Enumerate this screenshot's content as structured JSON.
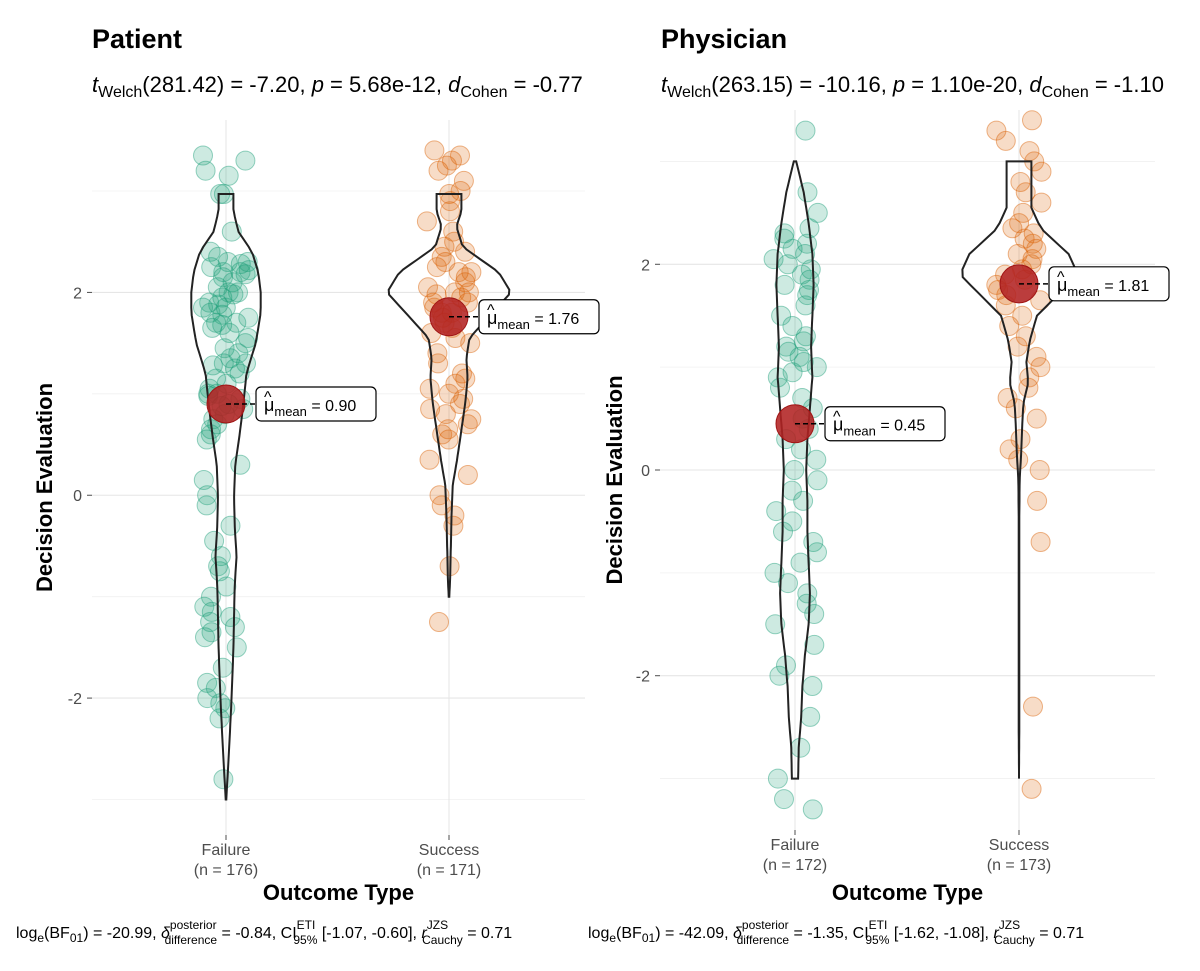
{
  "chart_data": [
    {
      "type": "violin",
      "title": "Patient",
      "subtitle": {
        "t_sub": "Welch",
        "df": "(281.42) = -7.20, ",
        "p_label": "p",
        "p_value": " = 5.68e-12, ",
        "d_label": "d",
        "d_sub": "Cohen",
        "d_value": " = -0.77"
      },
      "xlabel": "Outcome Type",
      "ylabel": "Decision Evaluation",
      "ylim": [
        -3.35,
        3.7
      ],
      "yticks": [
        -2,
        0,
        2
      ],
      "ytick_labels": [
        "-2",
        "0",
        "2"
      ],
      "groups": [
        {
          "name": "Failure",
          "n_label": "(n = 176)",
          "color": "#1b9e77",
          "mean": 0.9,
          "mean_label": "0.90",
          "violin_range": [
            -3.0,
            2.97
          ],
          "density": [
            [
              -3.0,
              0.005
            ],
            [
              -2.5,
              0.05
            ],
            [
              -2.0,
              0.09
            ],
            [
              -1.5,
              0.12
            ],
            [
              -1.2,
              0.13
            ],
            [
              -0.9,
              0.14
            ],
            [
              -0.6,
              0.17
            ],
            [
              -0.3,
              0.14
            ],
            [
              0.0,
              0.13
            ],
            [
              0.3,
              0.15
            ],
            [
              0.6,
              0.22
            ],
            [
              0.9,
              0.28
            ],
            [
              1.2,
              0.33
            ],
            [
              1.5,
              0.48
            ],
            [
              1.8,
              0.56
            ],
            [
              2.0,
              0.56
            ],
            [
              2.2,
              0.52
            ],
            [
              2.4,
              0.42
            ],
            [
              2.6,
              0.2
            ],
            [
              2.8,
              0.12
            ],
            [
              2.97,
              0.12
            ]
          ],
          "points": [
            3.35,
            3.3,
            3.2,
            3.15,
            2.97,
            2.97,
            2.6,
            2.4,
            2.35,
            2.3,
            2.3,
            2.28,
            2.25,
            2.22,
            2.2,
            2.2,
            2.18,
            2.15,
            2.1,
            2.05,
            2.0,
            2.0,
            1.98,
            1.95,
            1.9,
            1.88,
            1.85,
            1.85,
            1.8,
            1.78,
            1.75,
            1.7,
            1.7,
            1.68,
            1.65,
            1.6,
            1.55,
            1.5,
            1.45,
            1.4,
            1.35,
            1.3,
            1.3,
            1.28,
            1.25,
            1.2,
            1.15,
            1.1,
            1.05,
            1.0,
            1.0,
            0.98,
            0.95,
            0.9,
            0.88,
            0.85,
            0.8,
            0.75,
            0.7,
            0.65,
            0.6,
            0.55,
            0.3,
            0.15,
            0.0,
            -0.1,
            -0.3,
            -0.45,
            -0.6,
            -0.7,
            -0.75,
            -0.9,
            -1.0,
            -1.1,
            -1.15,
            -1.2,
            -1.25,
            -1.3,
            -1.35,
            -1.4,
            -1.5,
            -1.7,
            -1.85,
            -1.9,
            -2.0,
            -2.05,
            -2.1,
            -2.2,
            -2.8
          ]
        },
        {
          "name": "Success",
          "n_label": "(n = 171)",
          "color": "#d95f02",
          "mean": 1.76,
          "mean_label": "1.76",
          "violin_range": [
            -1.0,
            2.97
          ],
          "density": [
            [
              -1.0,
              0.005
            ],
            [
              -0.8,
              0.02
            ],
            [
              -0.5,
              0.03
            ],
            [
              -0.2,
              0.04
            ],
            [
              0.1,
              0.06
            ],
            [
              0.35,
              0.13
            ],
            [
              0.6,
              0.19
            ],
            [
              0.9,
              0.26
            ],
            [
              1.15,
              0.3
            ],
            [
              1.35,
              0.28
            ],
            [
              1.55,
              0.33
            ],
            [
              1.8,
              0.7
            ],
            [
              2.0,
              1.0
            ],
            [
              2.2,
              0.8
            ],
            [
              2.45,
              0.22
            ],
            [
              2.65,
              0.12
            ],
            [
              2.8,
              0.2
            ],
            [
              2.97,
              0.2
            ]
          ],
          "points": [
            3.4,
            3.35,
            3.3,
            3.25,
            3.2,
            3.1,
            3.0,
            2.97,
            2.9,
            2.8,
            2.7,
            2.6,
            2.5,
            2.45,
            2.4,
            2.35,
            2.3,
            2.25,
            2.2,
            2.2,
            2.15,
            2.1,
            2.05,
            2.0,
            2.0,
            1.98,
            1.95,
            1.9,
            1.9,
            1.85,
            1.8,
            1.8,
            1.75,
            1.7,
            1.65,
            1.6,
            1.55,
            1.5,
            1.4,
            1.3,
            1.2,
            1.15,
            1.1,
            1.05,
            1.0,
            0.95,
            0.9,
            0.85,
            0.8,
            0.75,
            0.7,
            0.65,
            0.6,
            0.55,
            0.35,
            0.2,
            0.0,
            -0.1,
            -0.2,
            -0.3,
            -0.7,
            -1.25
          ]
        }
      ]
    },
    {
      "type": "violin",
      "title": "Physician",
      "subtitle": {
        "t_sub": "Welch",
        "df": "(263.15) = -10.16, ",
        "p_label": "p",
        "p_value": " = 1.10e-20, ",
        "d_label": "d",
        "d_sub": "Cohen",
        "d_value": " = -1.10"
      },
      "xlabel": "Outcome Type",
      "ylabel": "Decision Evaluation",
      "ylim": [
        -3.5,
        3.5
      ],
      "yticks": [
        -2,
        0,
        2
      ],
      "ytick_labels": [
        "-2",
        "0",
        "2"
      ],
      "groups": [
        {
          "name": "Failure",
          "n_label": "(n = 172)",
          "color": "#1b9e77",
          "mean": 0.45,
          "mean_label": "0.45",
          "violin_range": [
            -3.0,
            3.0
          ],
          "density": [
            [
              -3.0,
              0.05
            ],
            [
              -2.7,
              0.06
            ],
            [
              -2.4,
              0.1
            ],
            [
              -2.1,
              0.12
            ],
            [
              -1.8,
              0.16
            ],
            [
              -1.5,
              0.22
            ],
            [
              -1.2,
              0.24
            ],
            [
              -0.9,
              0.22
            ],
            [
              -0.6,
              0.2
            ],
            [
              -0.3,
              0.2
            ],
            [
              0.0,
              0.18
            ],
            [
              0.3,
              0.2
            ],
            [
              0.6,
              0.24
            ],
            [
              0.9,
              0.28
            ],
            [
              1.2,
              0.26
            ],
            [
              1.5,
              0.28
            ],
            [
              1.8,
              0.3
            ],
            [
              2.1,
              0.28
            ],
            [
              2.4,
              0.22
            ],
            [
              2.7,
              0.14
            ],
            [
              3.0,
              0.02
            ]
          ],
          "points": [
            3.3,
            2.7,
            2.5,
            2.35,
            2.3,
            2.25,
            2.2,
            2.15,
            2.1,
            2.05,
            2.0,
            1.95,
            1.9,
            1.85,
            1.8,
            1.75,
            1.7,
            1.6,
            1.5,
            1.4,
            1.3,
            1.25,
            1.2,
            1.15,
            1.1,
            1.05,
            1.0,
            0.95,
            0.9,
            0.8,
            0.7,
            0.6,
            0.5,
            0.4,
            0.3,
            0.2,
            0.1,
            0.0,
            -0.1,
            -0.2,
            -0.3,
            -0.4,
            -0.5,
            -0.6,
            -0.7,
            -0.8,
            -0.9,
            -1.0,
            -1.1,
            -1.2,
            -1.3,
            -1.4,
            -1.5,
            -1.7,
            -1.9,
            -2.0,
            -2.1,
            -2.4,
            -2.7,
            -3.0,
            -3.2,
            -3.3
          ]
        },
        {
          "name": "Success",
          "n_label": "(n = 173)",
          "color": "#d95f02",
          "mean": 1.81,
          "mean_label": "1.81",
          "violin_range": [
            -3.0,
            3.0
          ],
          "density": [
            [
              -3.0,
              0.0
            ],
            [
              -2.5,
              0.005
            ],
            [
              -2.0,
              0.005
            ],
            [
              -1.5,
              0.005
            ],
            [
              -1.0,
              0.005
            ],
            [
              -0.5,
              0.005
            ],
            [
              -0.1,
              0.01
            ],
            [
              0.1,
              0.03
            ],
            [
              0.4,
              0.05
            ],
            [
              0.65,
              0.07
            ],
            [
              0.85,
              0.15
            ],
            [
              1.05,
              0.12
            ],
            [
              1.25,
              0.17
            ],
            [
              1.5,
              0.29
            ],
            [
              1.7,
              0.62
            ],
            [
              1.9,
              0.95
            ],
            [
              2.1,
              0.8
            ],
            [
              2.35,
              0.35
            ],
            [
              2.55,
              0.2
            ],
            [
              2.75,
              0.2
            ],
            [
              3.0,
              0.2
            ]
          ],
          "points": [
            3.4,
            3.3,
            3.2,
            3.1,
            3.0,
            2.9,
            2.8,
            2.7,
            2.6,
            2.5,
            2.4,
            2.35,
            2.3,
            2.25,
            2.2,
            2.15,
            2.1,
            2.05,
            2.0,
            1.95,
            1.9,
            1.85,
            1.8,
            1.75,
            1.7,
            1.65,
            1.6,
            1.5,
            1.4,
            1.3,
            1.2,
            1.1,
            1.0,
            0.9,
            0.8,
            0.7,
            0.6,
            0.5,
            0.3,
            0.2,
            0.1,
            0.0,
            -0.3,
            -0.7,
            -2.3,
            -3.1
          ]
        }
      ]
    }
  ],
  "captions": [
    {
      "bf": "-20.99",
      "delta": "-0.84",
      "ci": "[-1.07, -0.60]",
      "r": "0.71"
    },
    {
      "bf": "-42.09",
      "delta": "-1.35",
      "ci": "[-1.62, -1.08]",
      "r": "0.71"
    }
  ],
  "caption_text": {
    "log": "log",
    "log_sub": "e",
    "bf_name": "(BF",
    "bf_sub": "01",
    "close": ") = ",
    "delta": "δ",
    "delta_sup": "posterior",
    "delta_sub": "difference",
    "ci": "CI",
    "ci_sup": "ETI",
    "ci_sub": "95%",
    "r": "r",
    "r_sup": "JZS",
    "r_sub": "Cauchy",
    "sep": ", ",
    "eq": " = "
  },
  "mean_symbol": "μ",
  "mean_sub": "mean"
}
